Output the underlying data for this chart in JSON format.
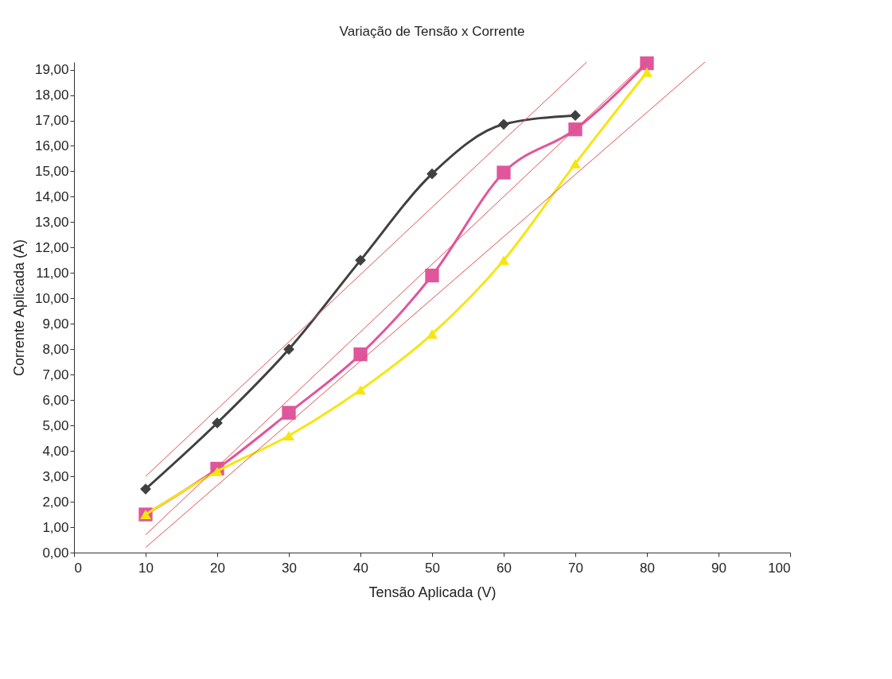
{
  "chart_data": {
    "type": "line",
    "title": "Variação de Tensão x Corrente",
    "xlabel": "Tensão Aplicada (V)",
    "ylabel": "Corrente Aplicada (A)",
    "xlim": [
      0,
      100
    ],
    "xticks": [
      0,
      10,
      20,
      30,
      40,
      50,
      60,
      70,
      80,
      90,
      100
    ],
    "ylim": [
      0,
      19.3
    ],
    "yticks": [
      {
        "value": 0,
        "label": "0,00"
      },
      {
        "value": 1,
        "label": "1,00"
      },
      {
        "value": 2,
        "label": "2,00"
      },
      {
        "value": 3,
        "label": "3,00"
      },
      {
        "value": 4,
        "label": "4,00"
      },
      {
        "value": 5,
        "label": "5,00"
      },
      {
        "value": 6,
        "label": "6,00"
      },
      {
        "value": 7,
        "label": "7,00"
      },
      {
        "value": 8,
        "label": "8,00"
      },
      {
        "value": 9,
        "label": "9,00"
      },
      {
        "value": 10,
        "label": "10,00"
      },
      {
        "value": 11,
        "label": "11,00"
      },
      {
        "value": 12,
        "label": "12,00"
      },
      {
        "value": 13,
        "label": "13,00"
      },
      {
        "value": 14,
        "label": "14,00"
      },
      {
        "value": 15,
        "label": "15,00"
      },
      {
        "value": 16,
        "label": "16,00"
      },
      {
        "value": 17,
        "label": "17,00"
      },
      {
        "value": 18,
        "label": "18,00"
      },
      {
        "value": 19,
        "label": "19,00"
      }
    ],
    "grid": false,
    "line_style": "solid",
    "series": [
      {
        "color": "#404040",
        "marker": "diamond",
        "x": [
          10,
          20,
          30,
          40,
          50,
          60,
          70
        ],
        "values": [
          2.5,
          5.1,
          8.0,
          11.5,
          14.9,
          16.85,
          17.2
        ]
      },
      {
        "color": "#e0569c",
        "marker": "square",
        "x": [
          10,
          20,
          30,
          40,
          50,
          60,
          70,
          80
        ],
        "values": [
          1.5,
          3.3,
          5.5,
          7.8,
          10.9,
          14.95,
          16.65,
          19.25
        ]
      },
      {
        "color": "#f5e60f",
        "marker": "triangle",
        "x": [
          10,
          20,
          30,
          40,
          50,
          60,
          70,
          80
        ],
        "values": [
          1.5,
          3.2,
          4.6,
          6.4,
          8.6,
          11.5,
          15.3,
          18.9
        ]
      },
      {
        "color": "#e05050",
        "marker": "none",
        "x": [
          10,
          71.6
        ],
        "values": [
          3.0,
          19.3
        ]
      },
      {
        "color": "#e05050",
        "marker": "none",
        "x": [
          10,
          79.9
        ],
        "values": [
          0.7,
          19.3
        ]
      },
      {
        "color": "#e05050",
        "marker": "none",
        "x": [
          10,
          88.1
        ],
        "values": [
          0.2,
          19.3
        ]
      }
    ]
  }
}
